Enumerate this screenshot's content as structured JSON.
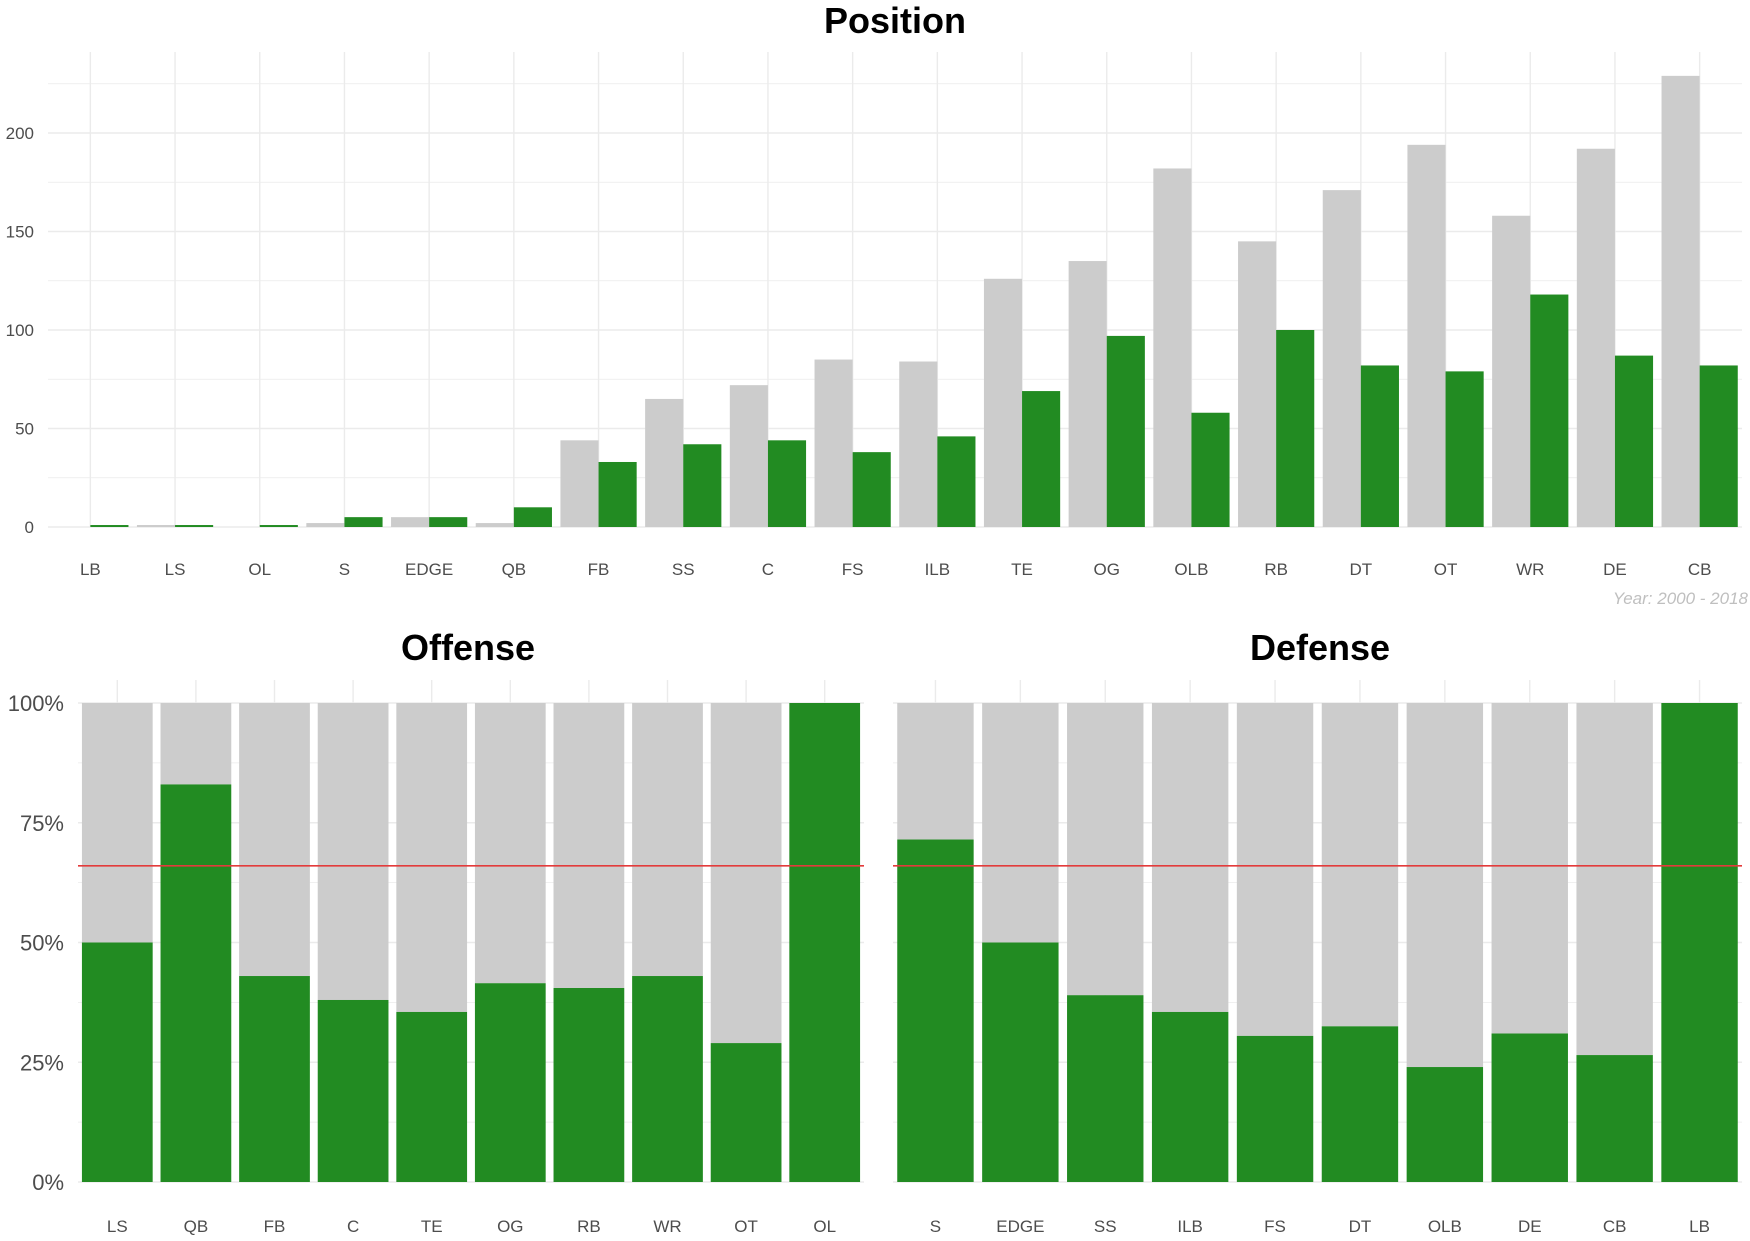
{
  "colors": {
    "grey_bar": "#cccccc",
    "green_bar": "#228b22",
    "grid": "#ebebeb",
    "reference_line": "#e33b3b"
  },
  "chart_data": [
    {
      "type": "bar",
      "title": "Position",
      "categories": [
        "LB",
        "LS",
        "OL",
        "S",
        "EDGE",
        "QB",
        "FB",
        "SS",
        "C",
        "FS",
        "ILB",
        "TE",
        "OG",
        "OLB",
        "RB",
        "DT",
        "OT",
        "WR",
        "DE",
        "CB"
      ],
      "series": [
        {
          "color": "#cccccc",
          "values": [
            0,
            1,
            0,
            2,
            5,
            2,
            44,
            65,
            72,
            85,
            84,
            126,
            135,
            182,
            145,
            171,
            194,
            158,
            192,
            229
          ]
        },
        {
          "color": "#228b22",
          "values": [
            1,
            1,
            1,
            5,
            5,
            10,
            33,
            42,
            44,
            38,
            46,
            69,
            97,
            58,
            100,
            82,
            79,
            118,
            87,
            82
          ]
        }
      ],
      "ylim": [
        0,
        240
      ],
      "yticks": [
        0,
        50,
        100,
        150,
        200
      ],
      "grid": true,
      "caption": "Year: 2000 - 2018"
    },
    {
      "type": "bar",
      "stacked": "fill",
      "title": "Offense",
      "categories": [
        "LS",
        "QB",
        "FB",
        "C",
        "TE",
        "OG",
        "RB",
        "WR",
        "OT",
        "OL"
      ],
      "series": [
        {
          "color": "#228b22",
          "values": [
            0.5,
            0.83,
            0.43,
            0.38,
            0.355,
            0.415,
            0.405,
            0.43,
            0.29,
            1.0
          ]
        }
      ],
      "reference_line": 0.66,
      "ylim": [
        0,
        1
      ],
      "yticks": [
        "0%",
        "25%",
        "50%",
        "75%",
        "100%"
      ],
      "grid": true
    },
    {
      "type": "bar",
      "stacked": "fill",
      "title": "Defense",
      "categories": [
        "S",
        "EDGE",
        "SS",
        "ILB",
        "FS",
        "DT",
        "OLB",
        "DE",
        "CB",
        "LB"
      ],
      "series": [
        {
          "color": "#228b22",
          "values": [
            0.715,
            0.5,
            0.39,
            0.355,
            0.305,
            0.325,
            0.24,
            0.31,
            0.265,
            1.0
          ]
        }
      ],
      "reference_line": 0.66,
      "ylim": [
        0,
        1
      ],
      "grid": true
    }
  ]
}
